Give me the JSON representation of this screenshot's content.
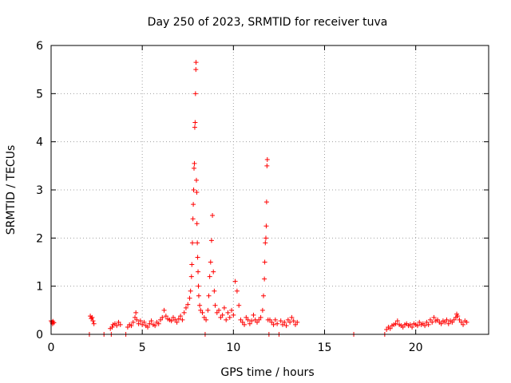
{
  "chart_data": {
    "type": "scatter",
    "title": "Day 250 of 2023, SRMTID for receiver tuva",
    "xlabel": "GPS time / hours",
    "ylabel": "SRMTID / TECUs",
    "xlim": [
      0,
      24
    ],
    "ylim": [
      0,
      6
    ],
    "xticks": [
      0,
      5,
      10,
      15,
      20
    ],
    "yticks": [
      0,
      1,
      2,
      3,
      4,
      5,
      6
    ],
    "grid": true,
    "marker": "+",
    "series_color": "#ff0000",
    "points": [
      [
        0.0,
        0.28
      ],
      [
        0.05,
        0.25
      ],
      [
        0.1,
        0.27
      ],
      [
        0.15,
        0.24
      ],
      [
        0.08,
        0.22
      ],
      [
        2.15,
        0.38
      ],
      [
        2.2,
        0.33
      ],
      [
        2.3,
        0.28
      ],
      [
        2.35,
        0.22
      ],
      [
        2.25,
        0.35
      ],
      [
        2.1,
        0.0
      ],
      [
        2.9,
        0.0
      ],
      [
        3.3,
        0.0
      ],
      [
        3.25,
        0.12
      ],
      [
        3.35,
        0.15
      ],
      [
        3.4,
        0.2
      ],
      [
        3.5,
        0.22
      ],
      [
        3.6,
        0.18
      ],
      [
        3.7,
        0.25
      ],
      [
        3.8,
        0.2
      ],
      [
        4.1,
        0.0
      ],
      [
        4.2,
        0.15
      ],
      [
        4.3,
        0.2
      ],
      [
        4.4,
        0.18
      ],
      [
        4.5,
        0.25
      ],
      [
        4.6,
        0.35
      ],
      [
        4.65,
        0.45
      ],
      [
        4.7,
        0.3
      ],
      [
        4.8,
        0.22
      ],
      [
        4.9,
        0.28
      ],
      [
        5.0,
        0.2
      ],
      [
        5.1,
        0.25
      ],
      [
        5.2,
        0.18
      ],
      [
        5.3,
        0.15
      ],
      [
        5.4,
        0.22
      ],
      [
        5.5,
        0.28
      ],
      [
        5.6,
        0.2
      ],
      [
        5.7,
        0.18
      ],
      [
        5.8,
        0.25
      ],
      [
        5.9,
        0.22
      ],
      [
        6.0,
        0.3
      ],
      [
        6.1,
        0.35
      ],
      [
        6.2,
        0.5
      ],
      [
        6.3,
        0.38
      ],
      [
        6.4,
        0.32
      ],
      [
        6.5,
        0.3
      ],
      [
        6.6,
        0.28
      ],
      [
        6.7,
        0.35
      ],
      [
        6.8,
        0.3
      ],
      [
        6.9,
        0.25
      ],
      [
        7.0,
        0.32
      ],
      [
        7.1,
        0.38
      ],
      [
        7.2,
        0.3
      ],
      [
        7.3,
        0.45
      ],
      [
        7.4,
        0.55
      ],
      [
        7.5,
        0.62
      ],
      [
        7.6,
        0.75
      ],
      [
        7.65,
        0.9
      ],
      [
        7.7,
        1.2
      ],
      [
        7.72,
        1.45
      ],
      [
        7.75,
        1.9
      ],
      [
        7.78,
        2.4
      ],
      [
        7.8,
        2.7
      ],
      [
        7.82,
        3.0
      ],
      [
        7.84,
        3.45
      ],
      [
        7.86,
        3.55
      ],
      [
        7.88,
        4.3
      ],
      [
        7.9,
        4.4
      ],
      [
        7.92,
        5.0
      ],
      [
        7.94,
        5.5
      ],
      [
        7.95,
        5.65
      ],
      [
        7.97,
        3.2
      ],
      [
        7.99,
        2.95
      ],
      [
        8.0,
        2.3
      ],
      [
        8.02,
        1.9
      ],
      [
        8.04,
        1.6
      ],
      [
        8.06,
        1.3
      ],
      [
        8.08,
        1.0
      ],
      [
        8.1,
        0.8
      ],
      [
        8.15,
        0.6
      ],
      [
        8.2,
        0.5
      ],
      [
        8.3,
        0.45
      ],
      [
        8.4,
        0.35
      ],
      [
        8.45,
        0.0
      ],
      [
        8.5,
        0.3
      ],
      [
        8.6,
        0.5
      ],
      [
        8.65,
        0.8
      ],
      [
        8.7,
        1.2
      ],
      [
        8.75,
        1.5
      ],
      [
        8.8,
        1.95
      ],
      [
        8.85,
        2.47
      ],
      [
        8.9,
        1.3
      ],
      [
        8.95,
        0.9
      ],
      [
        9.0,
        0.6
      ],
      [
        9.1,
        0.45
      ],
      [
        9.2,
        0.5
      ],
      [
        9.3,
        0.35
      ],
      [
        9.4,
        0.4
      ],
      [
        9.5,
        0.55
      ],
      [
        9.6,
        0.3
      ],
      [
        9.7,
        0.45
      ],
      [
        9.8,
        0.35
      ],
      [
        9.9,
        0.5
      ],
      [
        10.0,
        0.4
      ],
      [
        10.1,
        1.1
      ],
      [
        10.2,
        0.9
      ],
      [
        10.3,
        0.6
      ],
      [
        10.4,
        0.3
      ],
      [
        10.5,
        0.25
      ],
      [
        10.6,
        0.2
      ],
      [
        10.7,
        0.35
      ],
      [
        10.8,
        0.3
      ],
      [
        10.9,
        0.22
      ],
      [
        11.0,
        0.28
      ],
      [
        11.1,
        0.4
      ],
      [
        11.2,
        0.3
      ],
      [
        11.3,
        0.25
      ],
      [
        11.4,
        0.3
      ],
      [
        11.5,
        0.35
      ],
      [
        11.6,
        0.5
      ],
      [
        11.65,
        0.8
      ],
      [
        11.7,
        1.15
      ],
      [
        11.72,
        1.5
      ],
      [
        11.75,
        1.9
      ],
      [
        11.78,
        2.0
      ],
      [
        11.8,
        2.25
      ],
      [
        11.82,
        2.75
      ],
      [
        11.84,
        3.5
      ],
      [
        11.86,
        3.63
      ],
      [
        11.9,
        0.3
      ],
      [
        11.95,
        0.0
      ],
      [
        12.0,
        0.3
      ],
      [
        12.1,
        0.25
      ],
      [
        12.2,
        0.2
      ],
      [
        12.3,
        0.3
      ],
      [
        12.4,
        0.22
      ],
      [
        12.5,
        0.0
      ],
      [
        12.6,
        0.28
      ],
      [
        12.7,
        0.2
      ],
      [
        12.8,
        0.25
      ],
      [
        12.9,
        0.18
      ],
      [
        13.0,
        0.3
      ],
      [
        13.1,
        0.25
      ],
      [
        13.2,
        0.35
      ],
      [
        13.3,
        0.28
      ],
      [
        13.4,
        0.2
      ],
      [
        13.5,
        0.25
      ],
      [
        16.6,
        0.0
      ],
      [
        18.3,
        0.0
      ],
      [
        18.4,
        0.1
      ],
      [
        18.5,
        0.15
      ],
      [
        18.6,
        0.12
      ],
      [
        18.7,
        0.18
      ],
      [
        18.8,
        0.2
      ],
      [
        18.9,
        0.22
      ],
      [
        19.0,
        0.28
      ],
      [
        19.1,
        0.2
      ],
      [
        19.2,
        0.18
      ],
      [
        19.3,
        0.15
      ],
      [
        19.4,
        0.2
      ],
      [
        19.5,
        0.22
      ],
      [
        19.6,
        0.18
      ],
      [
        19.7,
        0.2
      ],
      [
        19.8,
        0.15
      ],
      [
        19.9,
        0.22
      ],
      [
        20.0,
        0.2
      ],
      [
        20.1,
        0.18
      ],
      [
        20.2,
        0.25
      ],
      [
        20.3,
        0.2
      ],
      [
        20.4,
        0.22
      ],
      [
        20.5,
        0.18
      ],
      [
        20.6,
        0.25
      ],
      [
        20.7,
        0.2
      ],
      [
        20.8,
        0.3
      ],
      [
        20.9,
        0.25
      ],
      [
        21.0,
        0.35
      ],
      [
        21.1,
        0.28
      ],
      [
        21.2,
        0.3
      ],
      [
        21.3,
        0.25
      ],
      [
        21.4,
        0.22
      ],
      [
        21.5,
        0.28
      ],
      [
        21.6,
        0.25
      ],
      [
        21.7,
        0.3
      ],
      [
        21.8,
        0.22
      ],
      [
        21.9,
        0.28
      ],
      [
        22.0,
        0.25
      ],
      [
        22.1,
        0.3
      ],
      [
        22.2,
        0.35
      ],
      [
        22.25,
        0.42
      ],
      [
        22.3,
        0.38
      ],
      [
        22.4,
        0.3
      ],
      [
        22.5,
        0.25
      ],
      [
        22.6,
        0.2
      ],
      [
        22.7,
        0.28
      ],
      [
        22.8,
        0.25
      ]
    ]
  }
}
